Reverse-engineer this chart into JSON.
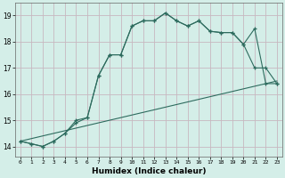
{
  "xlabel": "Humidex (Indice chaleur)",
  "ylabel": "",
  "bg_color": "#d4eee8",
  "grid_color": "#c8b8c0",
  "line_color": "#2d6b5e",
  "xlim": [
    -0.5,
    23.5
  ],
  "ylim": [
    13.6,
    19.5
  ],
  "xticks": [
    0,
    1,
    2,
    3,
    4,
    5,
    6,
    7,
    8,
    9,
    10,
    11,
    12,
    13,
    14,
    15,
    16,
    17,
    18,
    19,
    20,
    21,
    22,
    23
  ],
  "yticks": [
    14,
    15,
    16,
    17,
    18,
    19
  ],
  "series1_x": [
    0,
    1,
    2,
    3,
    4,
    5,
    6,
    7,
    8,
    9,
    10,
    11,
    12,
    13,
    14,
    15,
    16,
    17,
    18,
    19,
    20,
    21,
    22,
    23
  ],
  "series1_y": [
    14.2,
    14.1,
    14.0,
    14.2,
    14.5,
    15.0,
    15.1,
    16.7,
    17.5,
    17.5,
    18.6,
    18.8,
    18.8,
    19.1,
    18.8,
    18.6,
    18.8,
    18.4,
    18.35,
    18.35,
    17.9,
    18.5,
    16.4,
    16.4
  ],
  "series2_x": [
    0,
    1,
    2,
    3,
    4,
    5,
    6,
    7,
    8,
    9,
    10,
    11,
    12,
    13,
    14,
    15,
    16,
    17,
    18,
    19,
    20,
    21,
    22,
    23
  ],
  "series2_y": [
    14.2,
    14.1,
    14.0,
    14.2,
    14.5,
    14.9,
    15.1,
    16.7,
    17.5,
    17.5,
    18.6,
    18.8,
    18.8,
    19.1,
    18.8,
    18.6,
    18.8,
    18.4,
    18.35,
    18.35,
    17.9,
    17.0,
    17.0,
    16.4
  ],
  "series3_x": [
    0,
    23
  ],
  "series3_y": [
    14.2,
    16.5
  ],
  "figsize": [
    3.2,
    2.0
  ],
  "dpi": 100
}
